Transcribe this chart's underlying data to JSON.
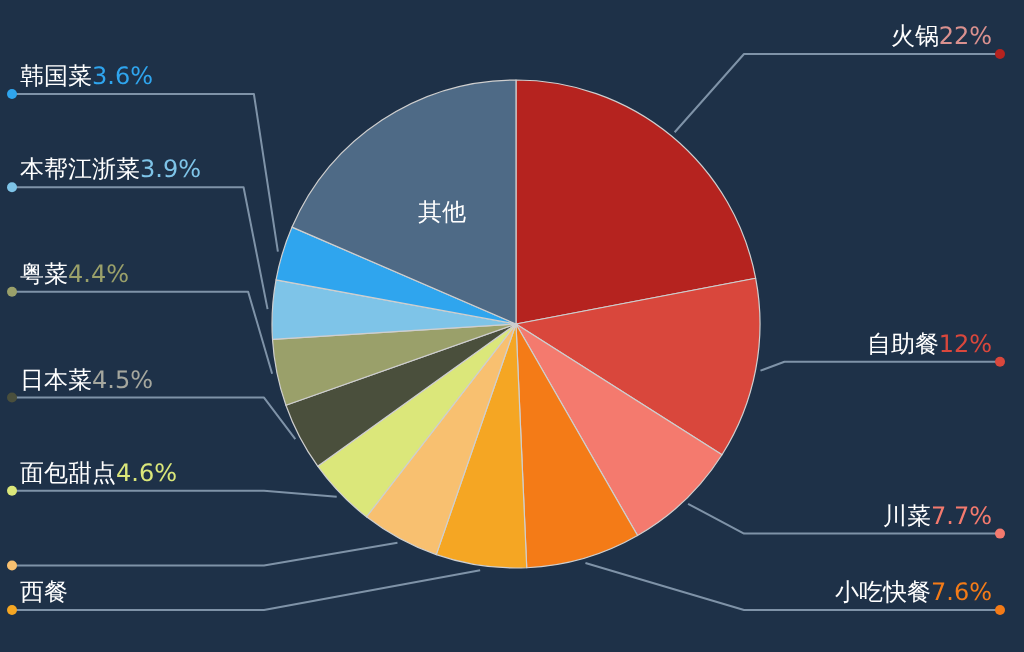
{
  "chart_data": {
    "type": "pie",
    "categories": [
      "火锅",
      "自助餐",
      "川菜",
      "小吃快餐",
      "西餐",
      null,
      "面包甜点",
      "日本菜",
      "粤菜",
      "本帮江浙菜",
      "韩国菜",
      "其他"
    ],
    "values": [
      22,
      12,
      7.7,
      7.6,
      6,
      5.2,
      4.6,
      4.5,
      4.4,
      3.9,
      3.6,
      18.5
    ],
    "colors": [
      "#b5231f",
      "#d9473c",
      "#f47a6e",
      "#f47b17",
      "#f5a623",
      "#f8c070",
      "#dbe77a",
      "#4a4f3c",
      "#9aa06a",
      "#7ec4e8",
      "#2fa5ee",
      "#4e6a86"
    ],
    "value_labels": [
      "22%",
      "12%",
      "7.7%",
      "7.6%",
      null,
      null,
      "4.6%",
      "4.5%",
      "4.4%",
      "3.9%",
      "3.6%",
      null
    ]
  }
}
